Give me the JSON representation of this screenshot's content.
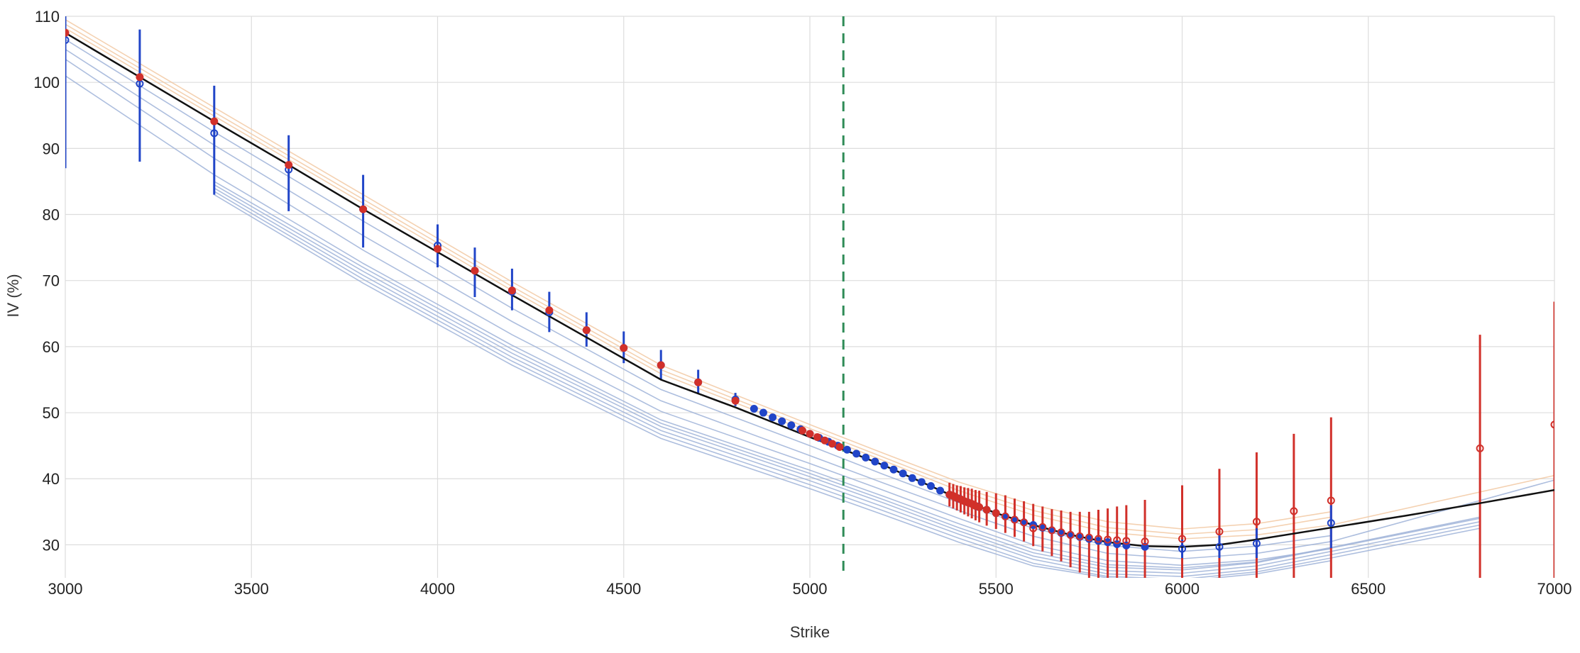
{
  "chart_data": {
    "type": "scatter",
    "xlabel": "Strike",
    "ylabel": "IV (%)",
    "xlim": [
      3000,
      7000
    ],
    "ylim": [
      25,
      110
    ],
    "xticks": [
      3000,
      3500,
      4000,
      4500,
      5000,
      5500,
      6000,
      6500,
      7000
    ],
    "yticks": [
      30,
      40,
      50,
      60,
      70,
      80,
      90,
      100,
      110
    ],
    "grid": true,
    "reference_line": {
      "x": 5090,
      "color": "#2e8b57",
      "style": "dashed"
    },
    "colors": {
      "fit": "#111111",
      "put": "#2145c8",
      "call": "#d1302a",
      "past_fit_blue": "#9fb3d8",
      "past_fit_orange": "#f2c9a3",
      "grid": "#dddddd"
    },
    "series": [
      {
        "role": "fit",
        "x": [
          3000,
          3200,
          3400,
          3600,
          3800,
          4000,
          4200,
          4400,
          4600,
          4800,
          5000,
          5100,
          5200,
          5300,
          5400,
          5500,
          5600,
          5700,
          5800,
          5900,
          6000,
          6100,
          6200,
          6400,
          6600,
          6800,
          7000
        ],
        "y": [
          107.5,
          100.8,
          94.1,
          87.5,
          80.8,
          74.3,
          67.8,
          61.4,
          55.0,
          50.8,
          46.3,
          44.2,
          42.0,
          39.5,
          37.0,
          34.8,
          33.0,
          31.5,
          30.4,
          29.8,
          29.7,
          30.0,
          30.8,
          32.6,
          34.4,
          36.3,
          38.3
        ]
      },
      {
        "role": "put-quotes",
        "points": [
          {
            "x": 3000,
            "y": 106.4,
            "low": 87.0,
            "high": 110.0
          },
          {
            "x": 3200,
            "y": 99.8,
            "low": 88.0,
            "high": 108.0
          },
          {
            "x": 3400,
            "y": 92.3,
            "low": 83.0,
            "high": 99.5
          },
          {
            "x": 3600,
            "y": 86.8,
            "low": 80.5,
            "high": 92.0
          },
          {
            "x": 3800,
            "y": 80.8,
            "low": 75.0,
            "high": 86.0
          },
          {
            "x": 4000,
            "y": 75.3,
            "low": 72.0,
            "high": 78.5
          },
          {
            "x": 4100,
            "y": 71.5,
            "low": 67.5,
            "high": 75.0
          },
          {
            "x": 4200,
            "y": 68.3,
            "low": 65.5,
            "high": 71.8
          },
          {
            "x": 4300,
            "y": 65.2,
            "low": 62.2,
            "high": 68.3
          },
          {
            "x": 4400,
            "y": 62.5,
            "low": 60.0,
            "high": 65.2
          },
          {
            "x": 4500,
            "y": 59.8,
            "low": 57.5,
            "high": 62.3
          },
          {
            "x": 4600,
            "y": 57.2,
            "low": 55.0,
            "high": 59.5
          },
          {
            "x": 4700,
            "y": 54.6,
            "low": 52.8,
            "high": 56.5
          },
          {
            "x": 4800,
            "y": 52.0,
            "low": 51.0,
            "high": 53.0
          },
          {
            "x": 4850,
            "y": 50.6
          },
          {
            "x": 4875,
            "y": 50.0
          },
          {
            "x": 4900,
            "y": 49.3
          },
          {
            "x": 4925,
            "y": 48.7
          },
          {
            "x": 4950,
            "y": 48.1
          },
          {
            "x": 4975,
            "y": 47.5
          },
          {
            "x": 5000,
            "y": 46.8
          },
          {
            "x": 5025,
            "y": 46.2
          },
          {
            "x": 5050,
            "y": 45.6
          },
          {
            "x": 5075,
            "y": 45.0
          },
          {
            "x": 5100,
            "y": 44.4
          },
          {
            "x": 5125,
            "y": 43.8
          },
          {
            "x": 5150,
            "y": 43.2
          },
          {
            "x": 5175,
            "y": 42.6
          },
          {
            "x": 5200,
            "y": 42.0
          },
          {
            "x": 5225,
            "y": 41.4
          },
          {
            "x": 5250,
            "y": 40.8
          },
          {
            "x": 5275,
            "y": 40.1
          },
          {
            "x": 5300,
            "y": 39.5
          },
          {
            "x": 5325,
            "y": 38.9
          },
          {
            "x": 5350,
            "y": 38.2
          },
          {
            "x": 5375,
            "y": 37.6
          },
          {
            "x": 5400,
            "y": 37.0
          },
          {
            "x": 5425,
            "y": 36.4
          },
          {
            "x": 5450,
            "y": 35.8
          },
          {
            "x": 5475,
            "y": 35.3
          },
          {
            "x": 5500,
            "y": 34.8
          },
          {
            "x": 5525,
            "y": 34.3
          },
          {
            "x": 5550,
            "y": 33.8
          },
          {
            "x": 5575,
            "y": 33.4
          },
          {
            "x": 5600,
            "y": 33.0
          },
          {
            "x": 5625,
            "y": 32.6
          },
          {
            "x": 5650,
            "y": 32.2
          },
          {
            "x": 5675,
            "y": 31.8
          },
          {
            "x": 5700,
            "y": 31.5
          },
          {
            "x": 5725,
            "y": 31.2
          },
          {
            "x": 5750,
            "y": 30.9
          },
          {
            "x": 5775,
            "y": 30.6
          },
          {
            "x": 5800,
            "y": 30.4
          },
          {
            "x": 5825,
            "y": 30.1
          },
          {
            "x": 5850,
            "y": 29.9
          },
          {
            "x": 5900,
            "y": 29.7
          },
          {
            "x": 6000,
            "y": 29.4,
            "low": 28.0,
            "high": 30.8
          },
          {
            "x": 6100,
            "y": 29.7,
            "low": 28.0,
            "high": 31.5
          },
          {
            "x": 6200,
            "y": 30.2,
            "low": 28.0,
            "high": 32.5
          },
          {
            "x": 6400,
            "y": 33.3,
            "low": 29.5,
            "high": 36.0
          }
        ]
      },
      {
        "role": "call-quotes",
        "points": [
          {
            "x": 3000,
            "y": 107.5
          },
          {
            "x": 3200,
            "y": 100.8
          },
          {
            "x": 3400,
            "y": 94.1
          },
          {
            "x": 3600,
            "y": 87.5
          },
          {
            "x": 3800,
            "y": 80.8
          },
          {
            "x": 4000,
            "y": 74.8
          },
          {
            "x": 4100,
            "y": 71.5
          },
          {
            "x": 4200,
            "y": 68.5
          },
          {
            "x": 4300,
            "y": 65.5
          },
          {
            "x": 4400,
            "y": 62.5
          },
          {
            "x": 4500,
            "y": 59.8
          },
          {
            "x": 4600,
            "y": 57.2
          },
          {
            "x": 4700,
            "y": 54.6
          },
          {
            "x": 4800,
            "y": 51.8
          },
          {
            "x": 4980,
            "y": 47.3
          },
          {
            "x": 5000,
            "y": 46.8
          },
          {
            "x": 5020,
            "y": 46.3
          },
          {
            "x": 5040,
            "y": 45.8
          },
          {
            "x": 5060,
            "y": 45.3
          },
          {
            "x": 5080,
            "y": 44.8
          },
          {
            "x": 5375,
            "y": 37.6,
            "low": 35.8,
            "high": 39.4
          },
          {
            "x": 5385,
            "y": 37.4,
            "low": 35.5,
            "high": 39.2
          },
          {
            "x": 5395,
            "y": 37.1,
            "low": 35.2,
            "high": 39.0
          },
          {
            "x": 5405,
            "y": 36.9,
            "low": 34.9,
            "high": 38.9
          },
          {
            "x": 5415,
            "y": 36.6,
            "low": 34.6,
            "high": 38.7
          },
          {
            "x": 5425,
            "y": 36.4,
            "low": 34.3,
            "high": 38.6
          },
          {
            "x": 5435,
            "y": 36.2,
            "low": 34.0,
            "high": 38.5
          },
          {
            "x": 5445,
            "y": 35.9,
            "low": 33.7,
            "high": 38.3
          },
          {
            "x": 5455,
            "y": 35.7,
            "low": 33.4,
            "high": 38.2
          },
          {
            "x": 5475,
            "y": 35.3,
            "low": 32.9,
            "high": 38.0
          },
          {
            "x": 5500,
            "y": 34.8,
            "low": 32.4,
            "high": 37.8
          },
          {
            "x": 5525,
            "y": 34.3,
            "low": 31.8,
            "high": 37.5
          },
          {
            "x": 5550,
            "y": 33.8,
            "low": 31.2,
            "high": 37.0
          },
          {
            "x": 5575,
            "y": 33.4,
            "low": 30.5,
            "high": 36.6
          },
          {
            "x": 5600,
            "y": 32.5,
            "low": 29.8,
            "high": 36.2
          },
          {
            "x": 5625,
            "y": 32.7,
            "low": 29.0,
            "high": 35.8
          },
          {
            "x": 5650,
            "y": 32.2,
            "low": 28.3,
            "high": 35.4
          },
          {
            "x": 5675,
            "y": 31.9,
            "low": 27.5,
            "high": 35.2
          },
          {
            "x": 5700,
            "y": 31.5,
            "low": 26.6,
            "high": 35.0
          },
          {
            "x": 5725,
            "y": 31.3,
            "low": 25.8,
            "high": 35.0
          },
          {
            "x": 5750,
            "y": 31.1,
            "low": 25.0,
            "high": 35.0
          },
          {
            "x": 5775,
            "y": 30.9,
            "low": 25.0,
            "high": 35.3
          },
          {
            "x": 5800,
            "y": 30.8,
            "low": 25.0,
            "high": 35.5
          },
          {
            "x": 5825,
            "y": 30.7,
            "low": 25.0,
            "high": 35.8
          },
          {
            "x": 5850,
            "y": 30.6,
            "low": 25.0,
            "high": 36.0
          },
          {
            "x": 5900,
            "y": 30.5,
            "low": 25.0,
            "high": 36.8
          },
          {
            "x": 6000,
            "y": 30.9,
            "low": 25.0,
            "high": 39.0
          },
          {
            "x": 6100,
            "y": 32.0,
            "low": 25.0,
            "high": 41.5
          },
          {
            "x": 6200,
            "y": 33.5,
            "low": 25.0,
            "high": 44.0
          },
          {
            "x": 6300,
            "y": 35.1,
            "low": 25.0,
            "high": 46.8
          },
          {
            "x": 6400,
            "y": 36.7,
            "low": 25.0,
            "high": 49.3
          },
          {
            "x": 6800,
            "y": 44.6,
            "low": 25.0,
            "high": 61.8
          },
          {
            "x": 7000,
            "y": 48.2,
            "low": 25.0,
            "high": 66.8
          }
        ]
      },
      {
        "role": "past-fit-orange",
        "x": [
          3000,
          3400,
          3800,
          4200,
          4600,
          5000,
          5200,
          5400,
          5600,
          5800,
          6000,
          6200,
          6400
        ],
        "y": [
          109.5,
          96.2,
          83.0,
          69.8,
          57.2,
          48.2,
          43.8,
          39.5,
          36.0,
          33.5,
          32.4,
          33.2,
          35.0
        ]
      },
      {
        "role": "past-fit-orange",
        "x": [
          3000,
          3400,
          3800,
          4200,
          4600,
          5000,
          5200,
          5400,
          5600,
          5800,
          6000,
          6200,
          6400
        ],
        "y": [
          108.8,
          95.5,
          82.3,
          69.1,
          56.5,
          47.6,
          43.2,
          38.8,
          35.2,
          32.6,
          31.6,
          32.3,
          34.2
        ]
      },
      {
        "role": "past-fit-orange",
        "x": [
          3000,
          3400,
          3800,
          4200,
          4600,
          5000,
          5200,
          5400,
          5600,
          5800,
          6000,
          6200,
          6400,
          7000
        ],
        "y": [
          108.2,
          94.9,
          81.7,
          68.5,
          55.9,
          47.1,
          42.7,
          38.2,
          34.5,
          31.9,
          30.9,
          31.5,
          33.0,
          40.5
        ]
      },
      {
        "role": "past-fit-blue",
        "x": [
          3000,
          3400,
          3800,
          4200,
          4600,
          5000,
          5200,
          5400,
          5600,
          5800,
          6000,
          6200,
          6400
        ],
        "y": [
          106.5,
          92.5,
          79.0,
          65.8,
          53.5,
          45.0,
          40.6,
          36.4,
          32.5,
          29.9,
          29.0,
          29.8,
          31.4
        ]
      },
      {
        "role": "past-fit-blue",
        "x": [
          3000,
          3400,
          3800,
          4200,
          4600,
          5000,
          5200,
          5400,
          5600,
          5800,
          6000,
          6200,
          6400,
          7000
        ],
        "y": [
          105.0,
          90.5,
          76.8,
          63.8,
          51.8,
          43.5,
          39.3,
          35.2,
          31.3,
          28.7,
          27.9,
          28.7,
          30.5,
          39.8
        ]
      },
      {
        "role": "past-fit-blue",
        "x": [
          3000,
          3400,
          3800,
          4200,
          4600,
          5000,
          5200,
          5400,
          5600,
          5800,
          6000,
          6200,
          6400
        ],
        "y": [
          103.5,
          88.5,
          74.6,
          61.8,
          50.2,
          42.3,
          38.2,
          34.0,
          30.0,
          27.6,
          26.9,
          27.7,
          29.4
        ]
      },
      {
        "role": "past-fit-blue",
        "x": [
          3400,
          3800,
          4200,
          4600,
          5000,
          5200,
          5400,
          5600,
          5800,
          6000,
          6200,
          6400,
          6800
        ],
        "y": [
          85.0,
          72.0,
          59.6,
          48.4,
          40.8,
          36.8,
          32.6,
          28.8,
          26.6,
          26.2,
          27.3,
          29.5,
          34.0
        ]
      },
      {
        "role": "past-fit-blue",
        "x": [
          3400,
          3800,
          4200,
          4600,
          5000,
          5200,
          5400,
          5600,
          5800,
          6000,
          6200,
          6400,
          6800
        ],
        "y": [
          84.5,
          71.4,
          59.0,
          47.9,
          40.3,
          36.3,
          32.1,
          28.3,
          26.1,
          25.7,
          26.8,
          29.0,
          33.5
        ]
      },
      {
        "role": "past-fit-blue",
        "x": [
          3400,
          3800,
          4200,
          4600,
          5000,
          5200,
          5400,
          5600,
          5800,
          6000,
          6200,
          6400,
          6800
        ],
        "y": [
          84.0,
          70.8,
          58.4,
          47.3,
          39.7,
          35.7,
          31.6,
          27.8,
          25.6,
          25.2,
          26.3,
          28.5,
          33.0
        ]
      },
      {
        "role": "past-fit-blue",
        "x": [
          3400,
          3800,
          4200,
          4600,
          5000,
          5200,
          5400,
          5600,
          5800,
          6000,
          6200,
          6400,
          6800
        ],
        "y": [
          83.5,
          70.2,
          57.8,
          46.7,
          39.1,
          35.1,
          31.0,
          27.2,
          25.2,
          24.8,
          25.9,
          28.0,
          32.5
        ]
      },
      {
        "role": "past-fit-blue",
        "x": [
          3400,
          3800,
          4200,
          4600,
          5000,
          5200,
          5400,
          5600,
          5800,
          6000,
          6200,
          6400
        ],
        "y": [
          83.0,
          69.6,
          57.2,
          46.1,
          38.5,
          34.5,
          30.4,
          26.8,
          25.0,
          24.5,
          25.6,
          27.6
        ]
      },
      {
        "role": "past-fit-blue",
        "x": [
          3000,
          3400,
          3800,
          4200,
          4600,
          5000,
          5200,
          5400,
          5600,
          5800,
          6000,
          6200,
          6400,
          6800
        ],
        "y": [
          101.0,
          86.0,
          72.6,
          60.2,
          48.9,
          41.3,
          37.3,
          33.2,
          29.3,
          27.0,
          26.5,
          27.4,
          29.6,
          34.2
        ]
      }
    ]
  }
}
